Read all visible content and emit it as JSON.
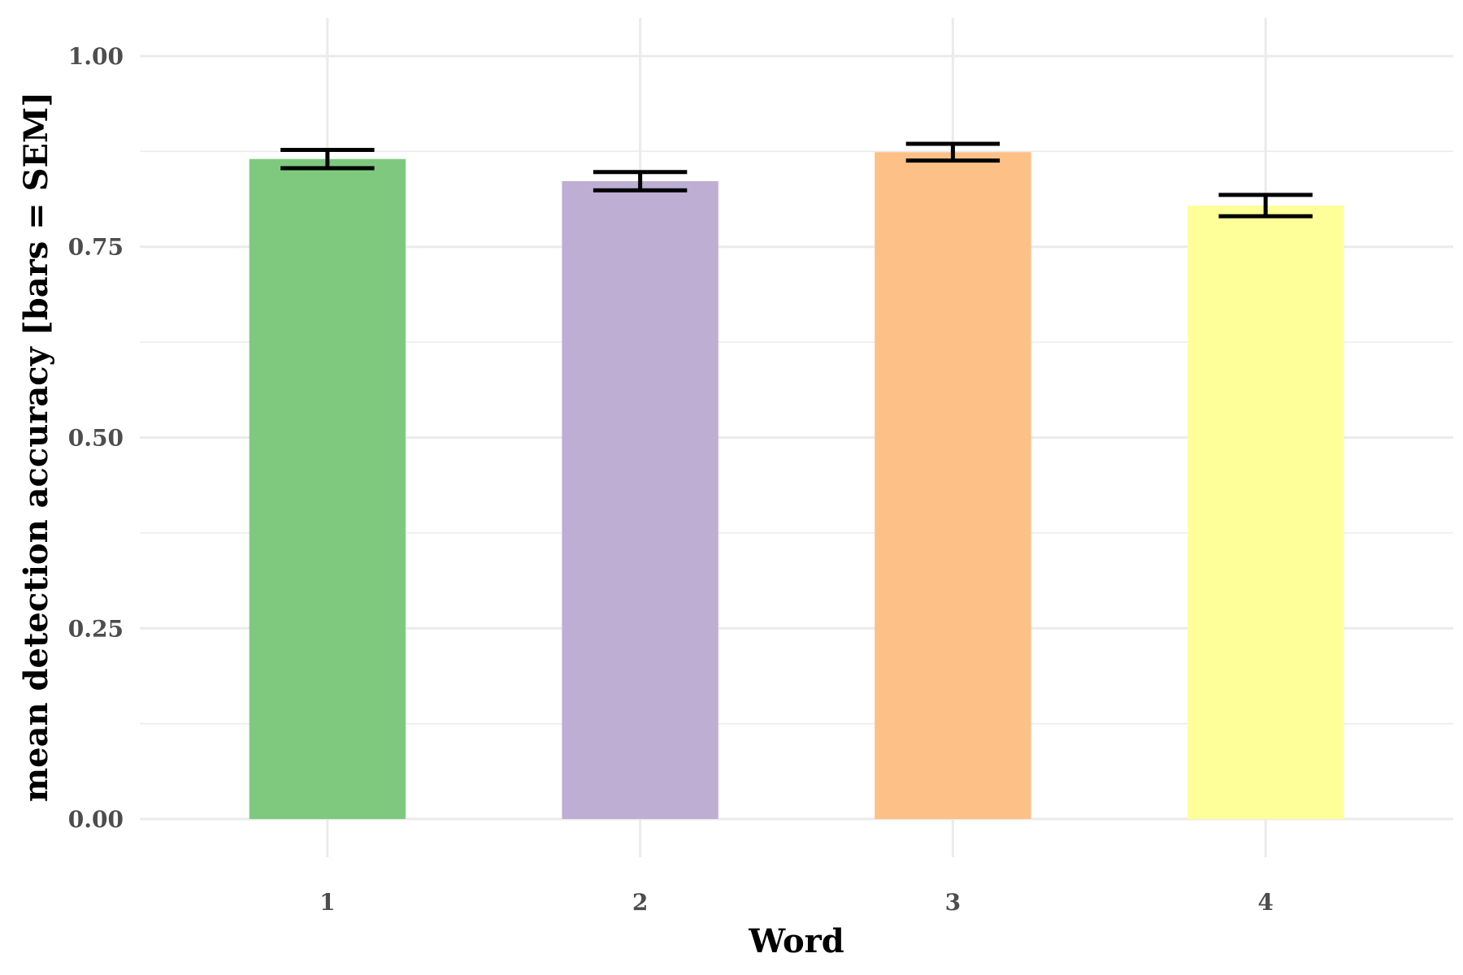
{
  "chart_data": {
    "type": "bar",
    "xlabel": "Word",
    "ylabel": "mean detection accuracy [bars = SEM]",
    "categories": [
      "1",
      "2",
      "3",
      "4"
    ],
    "values": [
      0.865,
      0.836,
      0.874,
      0.804
    ],
    "sem": [
      0.012,
      0.012,
      0.011,
      0.014
    ],
    "colors": [
      "#7fc97f",
      "#beaed4",
      "#fdc086",
      "#ffff99"
    ],
    "ylim": [
      -0.05,
      1.05
    ],
    "yticks": [
      0.0,
      0.25,
      0.5,
      0.75,
      1.0
    ],
    "ytick_labels": [
      "0.00",
      "0.25",
      "0.50",
      "0.75",
      "1.00"
    ],
    "grid": true,
    "legend": false
  }
}
